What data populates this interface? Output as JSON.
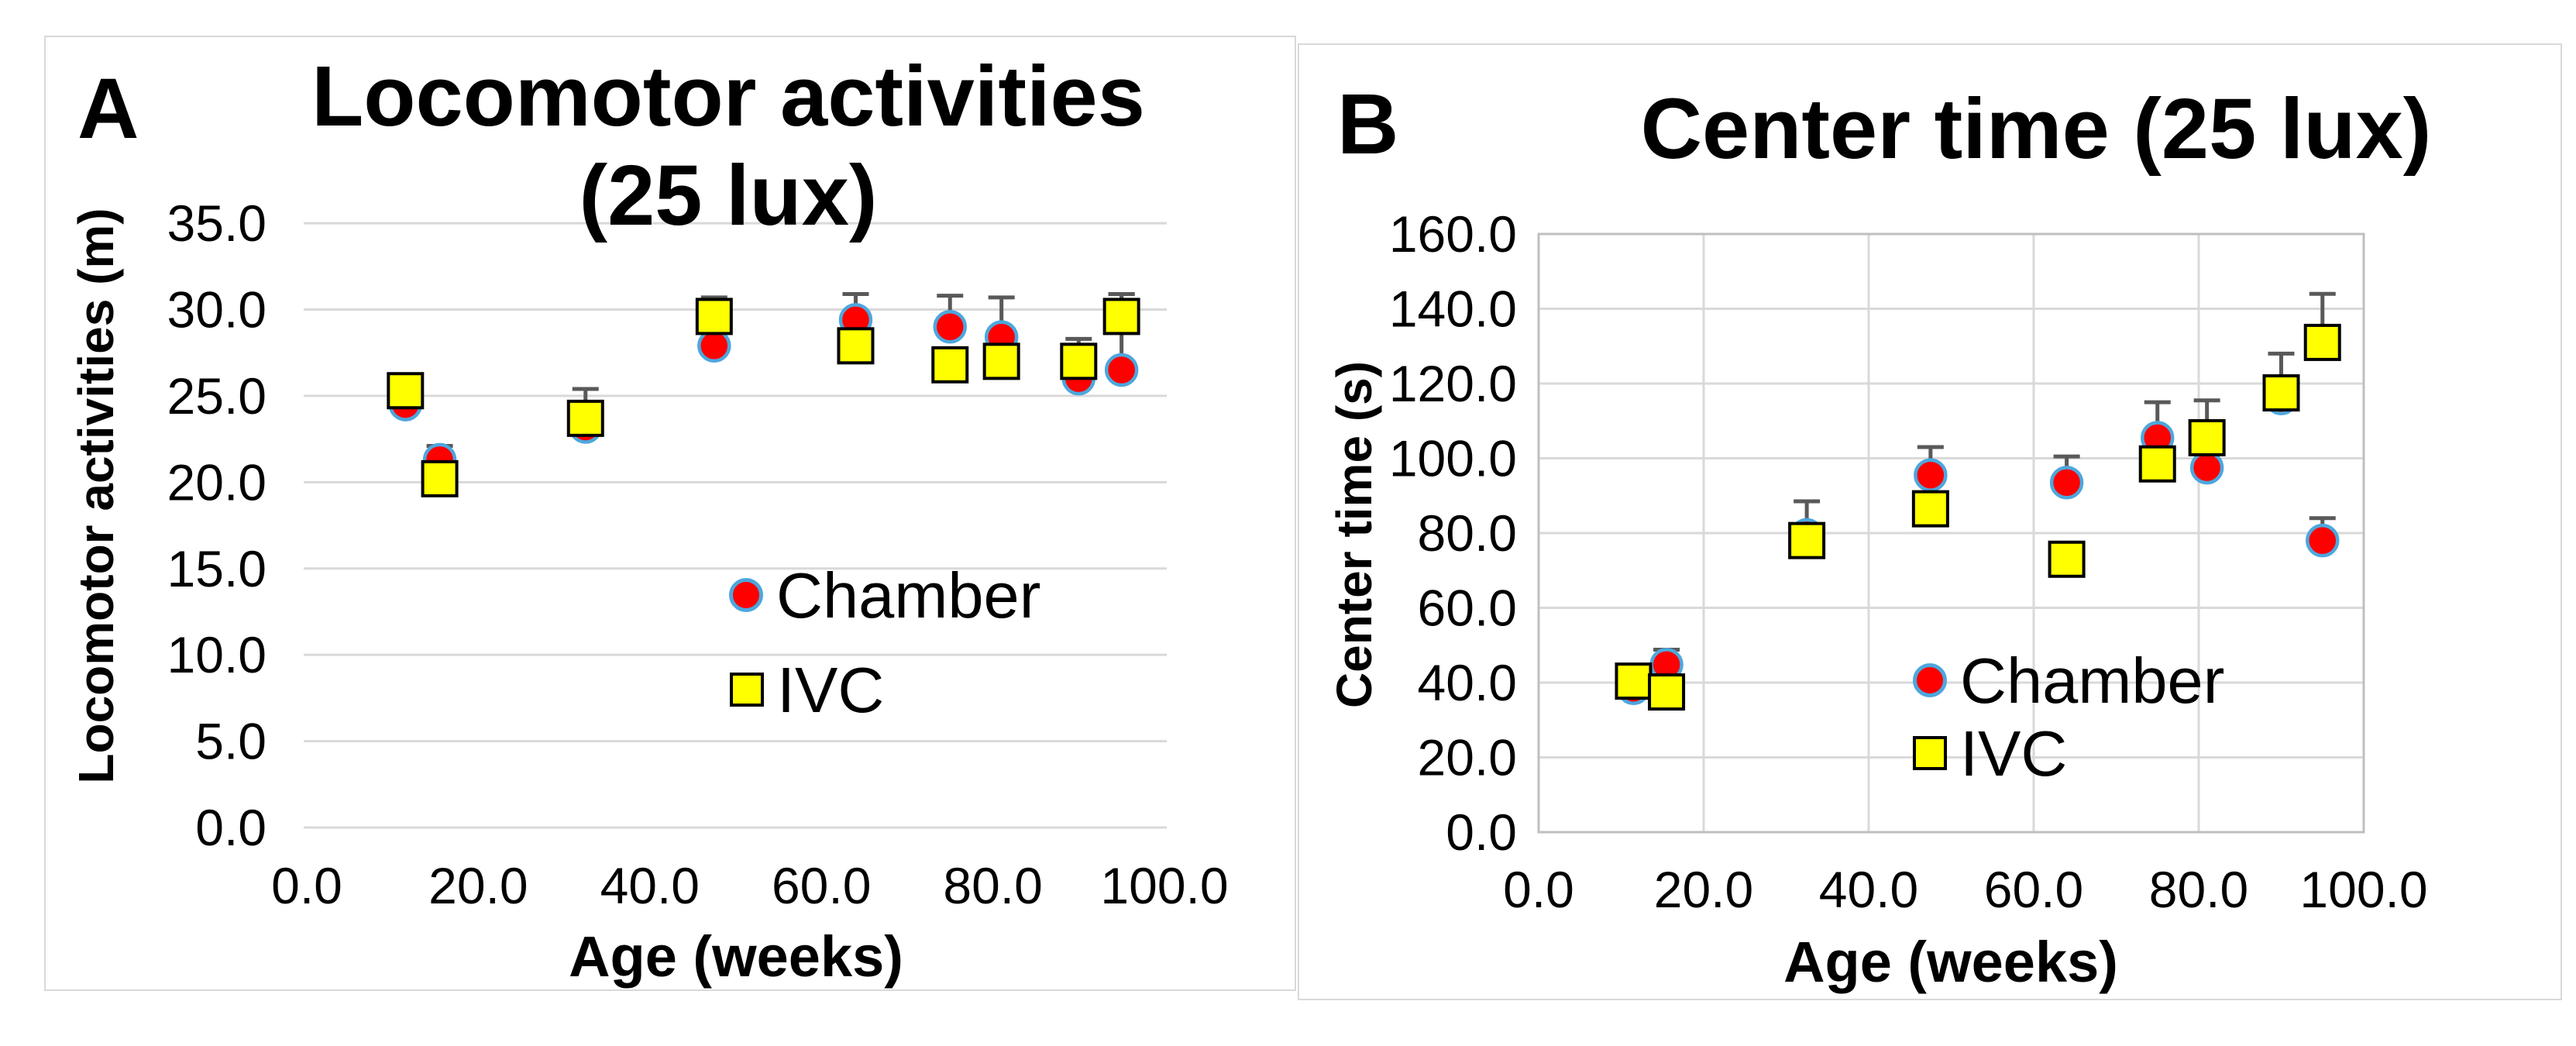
{
  "colors": {
    "chamber_fill": "#fe0000",
    "chamber_outline": "#4da7dd",
    "ivc_fill": "#ffff00",
    "ivc_outline": "#000000",
    "gridline": "#d9d9d9",
    "plot_border": "#bfbfbf",
    "error_bar": "#595959",
    "text": "#000000",
    "card_border": "#d9d9d9",
    "background": "#ffffff"
  },
  "panels": [
    {
      "letter": "A",
      "title_lines": [
        "Locomotor activities",
        "(25 lux)"
      ],
      "y_axis_title": "Locomotor activities (m)",
      "x_axis_title": "Age (weeks)",
      "legend": [
        {
          "label": "Chamber",
          "marker": "circle"
        },
        {
          "label": "IVC",
          "marker": "square"
        }
      ]
    },
    {
      "letter": "B",
      "title_lines": [
        "Center time (25 lux)"
      ],
      "y_axis_title": "Center time (s)",
      "x_axis_title": "Age (weeks)",
      "legend": [
        {
          "label": "Chamber",
          "marker": "circle"
        },
        {
          "label": "IVC",
          "marker": "square"
        }
      ]
    }
  ],
  "chart_data": [
    {
      "type": "scatter",
      "title": "Locomotor activities (25 lux)",
      "xlabel": "Age (weeks)",
      "ylabel": "Locomotor activities (m)",
      "xlim": [
        0,
        100
      ],
      "ylim": [
        0,
        35
      ],
      "x_ticks": [
        0,
        20,
        40,
        60,
        80,
        100
      ],
      "y_ticks": [
        0,
        5,
        10,
        15,
        20,
        25,
        30,
        35
      ],
      "tick_label_format": "one_decimal",
      "grid": "horizontal_only",
      "plot_border": false,
      "legend_position": "inside_lower_middle",
      "x": [
        11.5,
        15.5,
        32.5,
        47.5,
        64,
        75,
        81,
        90,
        95
      ],
      "series": [
        {
          "name": "Chamber",
          "marker": "circle",
          "values": [
            24.5,
            21.3,
            23.2,
            27.9,
            29.4,
            29.0,
            28.4,
            26.0,
            26.5
          ],
          "upper_errors": [
            0,
            0.8,
            0,
            0,
            1.5,
            1.8,
            2.3,
            0,
            4.4
          ]
        },
        {
          "name": "IVC",
          "marker": "square",
          "values": [
            25.3,
            20.2,
            23.7,
            29.6,
            27.9,
            26.8,
            27.0,
            27.0,
            29.6
          ],
          "upper_errors": [
            0,
            0,
            1.7,
            1.1,
            0,
            0,
            0,
            1.3,
            1.3
          ]
        }
      ]
    },
    {
      "type": "scatter",
      "title": "Center time (25 lux)",
      "xlabel": "Age (weeks)",
      "ylabel": "Center time (s)",
      "xlim": [
        0,
        100
      ],
      "ylim": [
        0,
        160
      ],
      "x_ticks": [
        0,
        20,
        40,
        60,
        80,
        100
      ],
      "y_ticks": [
        0,
        20,
        40,
        60,
        80,
        100,
        120,
        140,
        160
      ],
      "tick_label_format": "one_decimal",
      "grid": "both",
      "plot_border": true,
      "legend_position": "inside_lower_middle",
      "x": [
        11.5,
        15.5,
        32.5,
        47.5,
        64,
        75,
        81,
        90,
        95
      ],
      "series": [
        {
          "name": "Chamber",
          "marker": "circle",
          "values": [
            38.5,
            44.8,
            79.5,
            95.5,
            93.5,
            105.5,
            97.5,
            116.0,
            78.0
          ],
          "upper_errors": [
            0,
            4,
            0,
            7.5,
            7,
            9.5,
            0,
            0,
            6
          ]
        },
        {
          "name": "IVC",
          "marker": "square",
          "values": [
            40.4,
            37.5,
            78.0,
            86.5,
            73.0,
            98.5,
            105.5,
            117.5,
            131.0
          ],
          "upper_errors": [
            0,
            0,
            10.5,
            0,
            3.5,
            0,
            10,
            10.5,
            13
          ]
        }
      ]
    }
  ]
}
